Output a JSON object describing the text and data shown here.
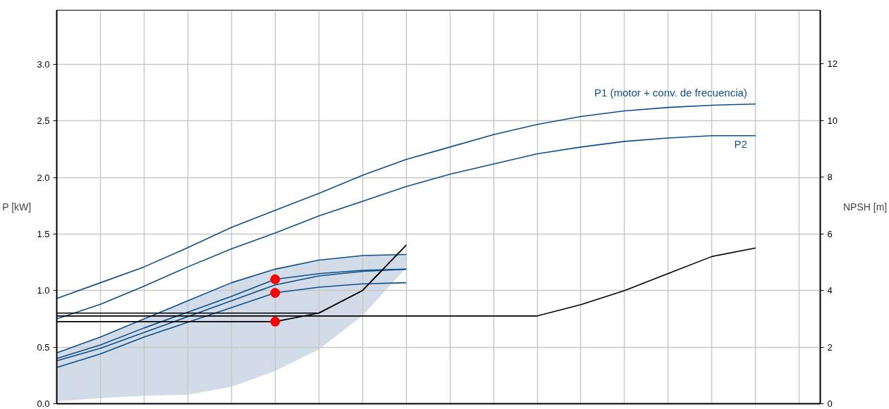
{
  "chart_data": {
    "type": "line",
    "ylabel": "P [kW]",
    "y2label": "NPSH [m]",
    "categories": [
      null,
      null,
      null,
      null,
      null,
      null,
      null,
      null,
      null,
      null,
      null,
      null,
      null,
      null,
      null,
      null,
      null
    ],
    "ylim": [
      0,
      3.48
    ],
    "yticks": [
      {
        "value": 0,
        "label": "0.0"
      },
      {
        "value": 0.5,
        "label": "0.5"
      },
      {
        "value": 1,
        "label": "1.0"
      },
      {
        "value": 1.5,
        "label": "1.5"
      },
      {
        "value": 2,
        "label": "2.0"
      },
      {
        "value": 2.5,
        "label": "2.5"
      },
      {
        "value": 3,
        "label": "3.0"
      }
    ],
    "y2lim": [
      0,
      13.9
    ],
    "y2ticks": [
      0,
      2,
      4,
      6,
      8,
      10,
      12
    ],
    "grid": true,
    "tick_labels": "y",
    "line_style": "solid",
    "series": [
      {
        "name": "P1 (motor + conv. de frecuencia)",
        "color": "#0d4f8b",
        "values": [
          0.93,
          1.07,
          1.21,
          1.38,
          1.56,
          1.71,
          1.86,
          2.02,
          2.16,
          2.27,
          2.38,
          2.47,
          2.54,
          2.59,
          2.62,
          2.64,
          2.65
        ]
      },
      {
        "name": "P2",
        "color": "#0d4f8b",
        "values": [
          0.75,
          0.88,
          1.04,
          1.21,
          1.37,
          1.51,
          1.66,
          1.79,
          1.92,
          2.03,
          2.12,
          2.21,
          2.27,
          2.32,
          2.35,
          2.37,
          2.37
        ]
      },
      {
        "color": "#0d4f8b",
        "values": [
          0.45,
          0.59,
          0.75,
          0.91,
          1.07,
          1.19,
          1.27,
          1.31,
          1.32,
          null,
          null,
          null,
          null,
          null,
          null,
          null,
          null
        ],
        "lower": [
          0.02,
          0.05,
          0.07,
          0.08,
          0.15,
          0.29,
          0.48,
          0.78,
          1.2,
          null,
          null,
          null,
          null,
          null,
          null,
          null,
          null
        ],
        "upper": [
          0.45,
          0.59,
          0.75,
          0.91,
          1.07,
          1.19,
          1.27,
          1.31,
          1.32,
          null,
          null,
          null,
          null,
          null,
          null,
          null,
          null
        ]
      },
      {
        "color": "#0d4f8b",
        "values": [
          0.4,
          0.52,
          0.67,
          0.81,
          0.95,
          1.1,
          1.15,
          1.18,
          1.19,
          null,
          null,
          null,
          null,
          null,
          null,
          null,
          null
        ]
      },
      {
        "color": "#0d4f8b",
        "values": [
          0.38,
          0.49,
          0.63,
          0.77,
          0.91,
          1.05,
          1.13,
          1.17,
          1.19,
          null,
          null,
          null,
          null,
          null,
          null,
          null,
          null
        ]
      },
      {
        "color": "#0d4f8b",
        "values": [
          0.32,
          0.44,
          0.59,
          0.72,
          0.85,
          0.98,
          1.03,
          1.06,
          1.07,
          null,
          null,
          null,
          null,
          null,
          null,
          null,
          null
        ]
      },
      {
        "color": "#000000",
        "axis": "y2",
        "values": [
          3.1,
          3.1,
          3.1,
          3.1,
          3.1,
          3.1,
          3.1,
          3.1,
          3.1,
          3.1,
          3.1,
          3.1,
          3.5,
          4.0,
          4.6,
          5.2,
          5.5
        ]
      },
      {
        "color": "#000000",
        "axis": "y2",
        "values": [
          3.2,
          3.2,
          3.2,
          3.2,
          3.2,
          3.2,
          3.2,
          4.0,
          5.6,
          null,
          null,
          null,
          null,
          null,
          null,
          null,
          null
        ]
      },
      {
        "color": "#000000",
        "axis": "y2",
        "values": [
          2.9,
          2.9,
          2.9,
          2.9,
          2.9,
          2.9,
          3.2,
          4.0,
          5.6,
          null,
          null,
          null,
          null,
          null,
          null,
          null,
          null
        ]
      },
      {
        "type": "scatter",
        "marker": "circle",
        "color": "#ff0000",
        "values": [
          null,
          null,
          null,
          null,
          null,
          1.1,
          null,
          null,
          null,
          null,
          null,
          null,
          null,
          null,
          null,
          null,
          null
        ]
      },
      {
        "type": "scatter",
        "marker": "circle",
        "color": "#ff0000",
        "values": [
          null,
          null,
          null,
          null,
          null,
          0.98,
          null,
          null,
          null,
          null,
          null,
          null,
          null,
          null,
          null,
          null,
          null
        ]
      },
      {
        "type": "scatter",
        "marker": "circle",
        "color": "#ff0000",
        "axis": "y2",
        "values": [
          null,
          null,
          null,
          null,
          null,
          2.9,
          null,
          null,
          null,
          null,
          null,
          null,
          null,
          null,
          null,
          null,
          null
        ]
      }
    ]
  }
}
